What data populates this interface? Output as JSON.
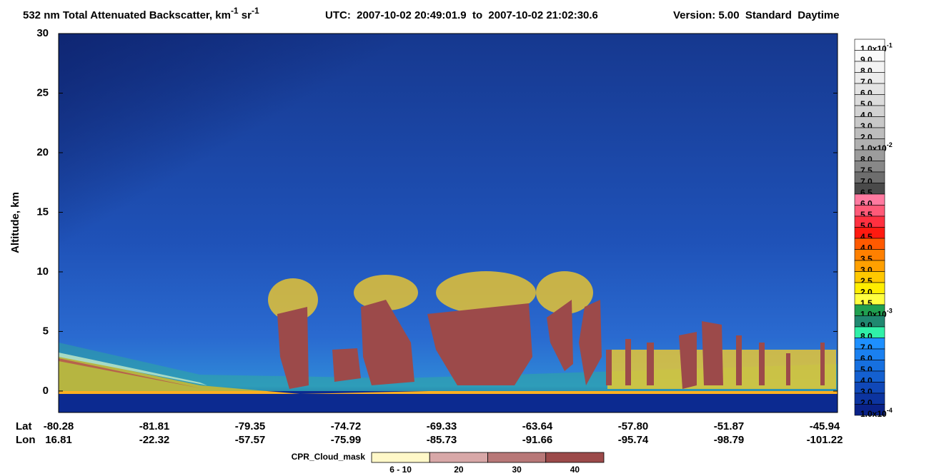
{
  "chart_data": {
    "type": "heatmap",
    "title": {
      "main": "532 nm Total Attenuated Backscatter, km",
      "sup1": "-1",
      "mid": " sr",
      "sup2": "-1"
    },
    "time_range": "UTC:  2007-10-02 20:49:01.9  to  2007-10-02 21:02:30.6",
    "version": "Version: 5.00  Standard  Daytime",
    "ylabel": "Altitude, km",
    "ylim": [
      -1.8,
      30
    ],
    "yticks": [
      0,
      5,
      10,
      15,
      20,
      25,
      30
    ],
    "x_rows": [
      {
        "name": "Lat",
        "labels": [
          "-80.28",
          "-81.81",
          "-79.35",
          "-74.72",
          "-69.33",
          "-63.64",
          "-57.80",
          "-51.87",
          "-45.94"
        ]
      },
      {
        "name": "Lon",
        "labels": [
          "16.81",
          "-22.32",
          "-57.57",
          "-75.99",
          "-85.73",
          "-91.66",
          "-95.74",
          "-98.79",
          "-101.22"
        ]
      }
    ],
    "colorbar": [
      {
        "label": "1.0x10",
        "exp": "-1",
        "color": "#ffffff"
      },
      {
        "label": "9.0",
        "color": "#fafafa"
      },
      {
        "label": "8.0",
        "color": "#f3f3f3"
      },
      {
        "label": "7.0",
        "color": "#ececec"
      },
      {
        "label": "6.0",
        "color": "#e4e4e4"
      },
      {
        "label": "5.0",
        "color": "#dcdcdc"
      },
      {
        "label": "4.0",
        "color": "#d2d2d2"
      },
      {
        "label": "3.0",
        "color": "#c8c8c8"
      },
      {
        "label": "2.0",
        "color": "#bdbdbd"
      },
      {
        "label": "1.0x10",
        "exp": "-2",
        "color": "#b0b0b0"
      },
      {
        "label": "8.0",
        "color": "#9c9c9c"
      },
      {
        "label": "7.5",
        "color": "#888888"
      },
      {
        "label": "7.0",
        "color": "#6e6e6e"
      },
      {
        "label": "6.5",
        "color": "#4a4a4a"
      },
      {
        "label": "6.0",
        "color": "#ff7aa0"
      },
      {
        "label": "5.5",
        "color": "#ff5a78"
      },
      {
        "label": "5.0",
        "color": "#ff3040"
      },
      {
        "label": "4.5",
        "color": "#ff1a10"
      },
      {
        "label": "4.0",
        "color": "#ff5a00"
      },
      {
        "label": "3.5",
        "color": "#ff8000"
      },
      {
        "label": "3.0",
        "color": "#ffa000"
      },
      {
        "label": "2.5",
        "color": "#ffc800"
      },
      {
        "label": "2.0",
        "color": "#ffee00"
      },
      {
        "label": "1.5",
        "color": "#ffff40"
      },
      {
        "label": "1.0x10",
        "exp": "-3",
        "color": "#20a050"
      },
      {
        "label": "9.0",
        "color": "#208870"
      },
      {
        "label": "8.0",
        "color": "#30f0a8"
      },
      {
        "label": "7.0",
        "color": "#1e90ff"
      },
      {
        "label": "6.0",
        "color": "#1a80f0"
      },
      {
        "label": "5.0",
        "color": "#1670e0"
      },
      {
        "label": "4.0",
        "color": "#1460d0"
      },
      {
        "label": "3.0",
        "color": "#1048b8"
      },
      {
        "label": "2.0",
        "color": "#0c34a0"
      },
      {
        "label": "1.0x10",
        "exp": "-4",
        "color": "#0a2288"
      }
    ],
    "cloud_mask": {
      "title": "CPR_Cloud_mask",
      "bins": [
        {
          "label": "6 - 10",
          "color": "#fff8c8"
        },
        {
          "label": "20",
          "color": "#d8a8a8"
        },
        {
          "label": "30",
          "color": "#b87878"
        },
        {
          "label": "40",
          "color": "#9c4a4a"
        }
      ]
    }
  }
}
